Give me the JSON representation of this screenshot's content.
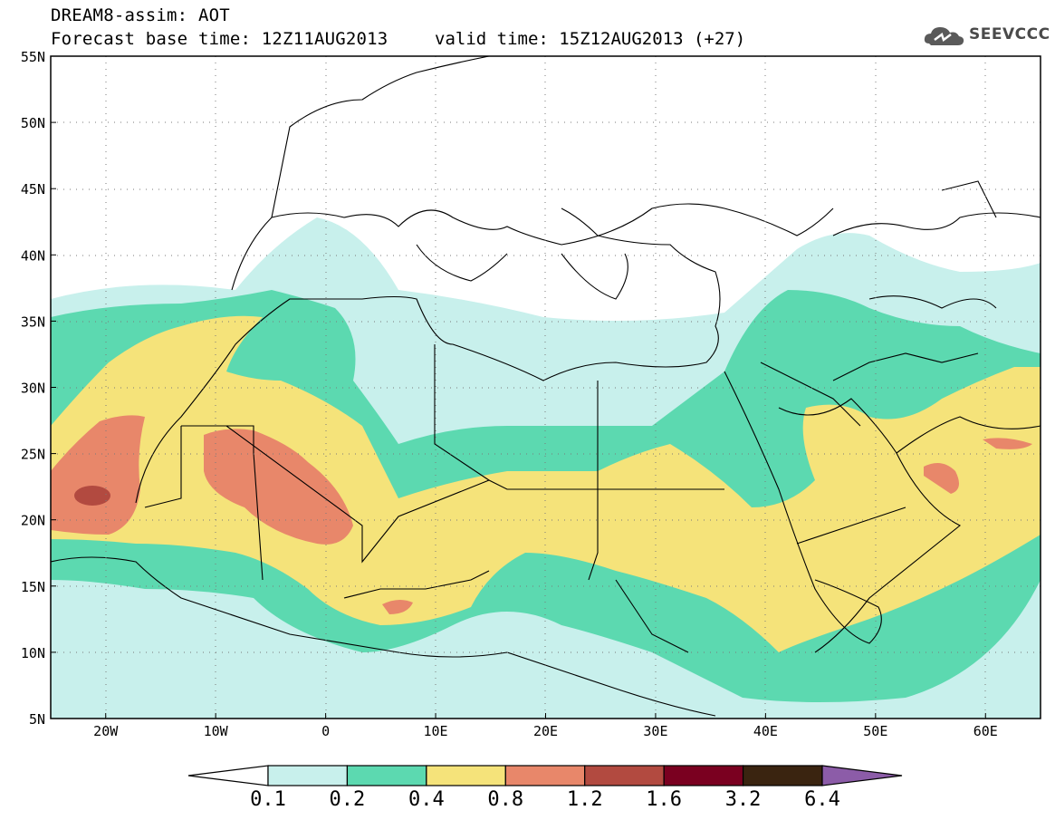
{
  "header": {
    "model": "DREAM8-assim: AOT",
    "base_time": "Forecast base time: 12Z11AUG2013",
    "valid_time": "valid time: 15Z12AUG2013 (+27)",
    "logo_text": "SEEVCCC",
    "logo_icon": "cloud-icon"
  },
  "map": {
    "region": "North Africa, Europe and Middle East",
    "lat_labels": [
      "55N",
      "50N",
      "45N",
      "40N",
      "35N",
      "30N",
      "25N",
      "20N",
      "15N",
      "10N",
      "5N"
    ],
    "lon_labels": [
      "20W",
      "10W",
      "0",
      "10E",
      "20E",
      "30E",
      "40E",
      "50E",
      "60E"
    ],
    "lat_range": [
      5,
      55
    ],
    "lon_range": [
      -25,
      65
    ],
    "grid": "dotted"
  },
  "legend": {
    "labels": [
      "0.1",
      "0.2",
      "0.4",
      "0.8",
      "1.2",
      "1.6",
      "3.2",
      "6.4"
    ],
    "colors": [
      "#ffffff",
      "#c8f0ec",
      "#5cd9b0",
      "#f5e37a",
      "#e8876a",
      "#b24a40",
      "#7a0020",
      "#3a2410",
      "#8c5ca8"
    ]
  }
}
